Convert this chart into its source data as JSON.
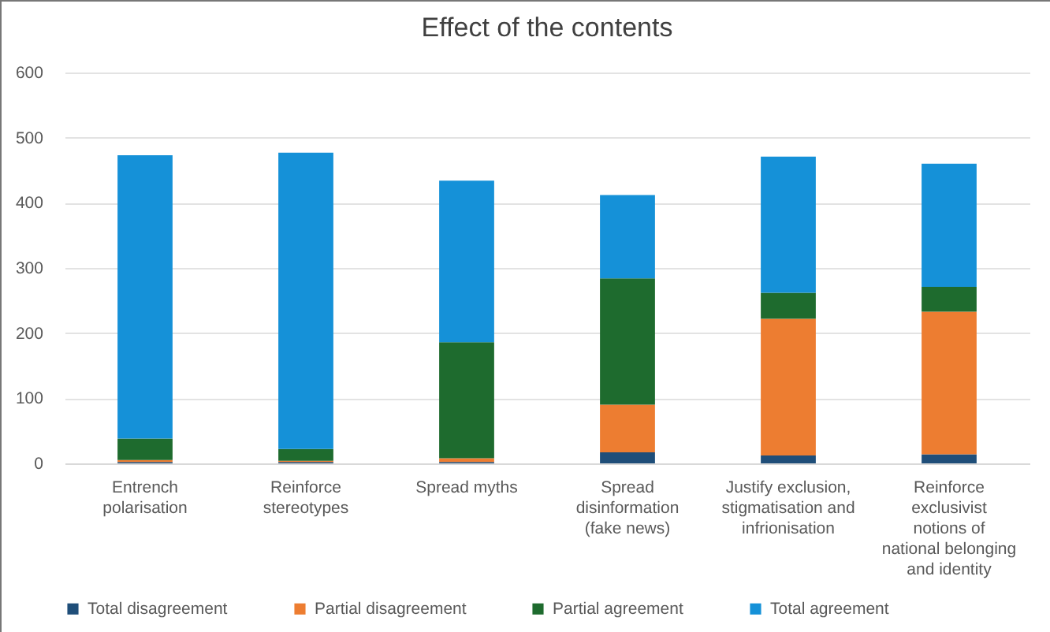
{
  "chart_data": {
    "type": "bar",
    "title": "Effect of the contents",
    "stacked": true,
    "categories": [
      "Entrench polarisation",
      "Reinforce stereotypes",
      "Spread myths",
      "Spread disinformation (fake news)",
      "Justify exclusion, stigmatisation and infrionisation",
      "Reinforce exclusivist notions of national belonging and identity"
    ],
    "series": [
      {
        "name": "Total disagreement",
        "color": "#1f4e79",
        "values": [
          2,
          2,
          2,
          17,
          12,
          14
        ]
      },
      {
        "name": "Partial disagreement",
        "color": "#ed7d31",
        "values": [
          3,
          2,
          6,
          73,
          210,
          219
        ]
      },
      {
        "name": "Partial agreement",
        "color": "#1e6b2e",
        "values": [
          33,
          18,
          178,
          194,
          40,
          38
        ]
      },
      {
        "name": "Total agreement",
        "color": "#1591d8",
        "values": [
          435,
          455,
          248,
          128,
          209,
          189
        ]
      }
    ],
    "ylim": [
      0,
      600
    ],
    "yticks": [
      0,
      100,
      200,
      300,
      400,
      500,
      600
    ],
    "grid": "y",
    "legend": "bottom"
  }
}
